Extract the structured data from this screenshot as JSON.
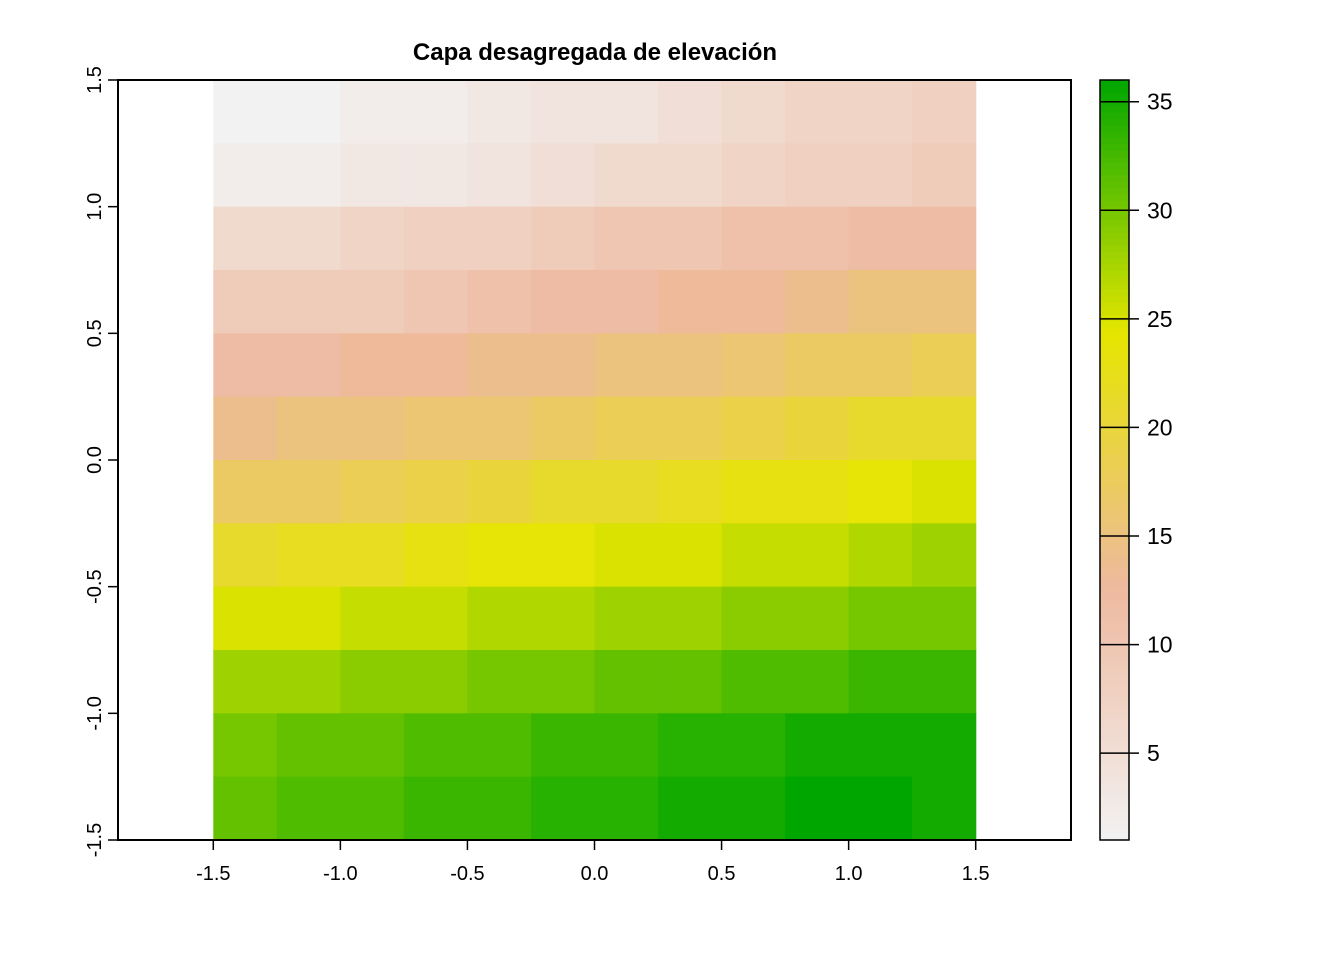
{
  "chart_data": {
    "type": "heatmap",
    "title": "Capa desagregada de elevación",
    "xlabel": "",
    "ylabel": "",
    "xlim": [
      -1.875,
      1.875
    ],
    "ylim": [
      -1.5,
      1.5
    ],
    "extent": {
      "xmin": -1.5,
      "xmax": 1.5,
      "ymin": -1.5,
      "ymax": 1.5
    },
    "x_ticks": [
      "-1.5",
      "-1.0",
      "-0.5",
      "0.0",
      "0.5",
      "1.0",
      "1.5"
    ],
    "y_ticks": [
      "-1.5",
      "-1.0",
      "-0.5",
      "0.0",
      "0.5",
      "1.0",
      "1.5"
    ],
    "ncols": 12,
    "nrows": 12,
    "values": [
      [
        1,
        1,
        2,
        2,
        3,
        4,
        4,
        5,
        6,
        7,
        7,
        8
      ],
      [
        2,
        2,
        3,
        3,
        4,
        5,
        6,
        6,
        7,
        8,
        8,
        9
      ],
      [
        6,
        6,
        7,
        8,
        8,
        9,
        10,
        10,
        11,
        11,
        12,
        12
      ],
      [
        9,
        9,
        9,
        10,
        11,
        12,
        12,
        13,
        13,
        14,
        15,
        15
      ],
      [
        12,
        12,
        13,
        13,
        14,
        14,
        15,
        15,
        16,
        17,
        17,
        18
      ],
      [
        14,
        15,
        15,
        16,
        16,
        17,
        18,
        18,
        19,
        20,
        21,
        21
      ],
      [
        17,
        17,
        18,
        19,
        20,
        21,
        21,
        22,
        23,
        23,
        24,
        25
      ],
      [
        21,
        22,
        22,
        23,
        24,
        24,
        25,
        25,
        26,
        26,
        27,
        28
      ],
      [
        25,
        25,
        26,
        26,
        27,
        27,
        28,
        28,
        29,
        29,
        30,
        30
      ],
      [
        28,
        28,
        29,
        29,
        30,
        30,
        31,
        31,
        32,
        32,
        33,
        33
      ],
      [
        30,
        31,
        31,
        32,
        32,
        33,
        33,
        34,
        34,
        35,
        35,
        35
      ],
      [
        31,
        32,
        32,
        33,
        33,
        34,
        34,
        35,
        35,
        36,
        36,
        35
      ]
    ],
    "legend": {
      "min": 1,
      "max": 36,
      "ticks": [
        "5",
        "10",
        "15",
        "20",
        "25",
        "30",
        "35"
      ],
      "placement": "right",
      "colors": [
        "#f2f2f2",
        "#eeb99f",
        "#e6e600",
        "#00a600"
      ]
    },
    "grid": false
  }
}
